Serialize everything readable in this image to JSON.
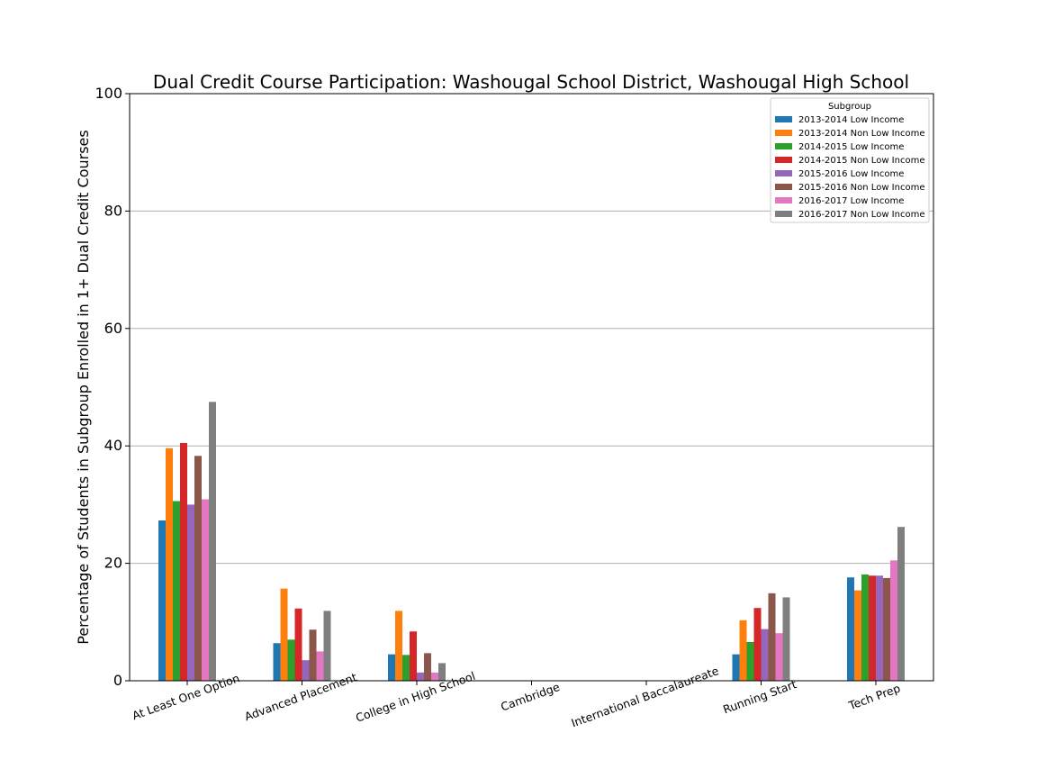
{
  "chart_data": {
    "type": "bar",
    "title": "Dual Credit Course Participation: Washougal School District, Washougal High School",
    "xlabel": "",
    "ylabel": "Percentage of Students in Subgroup Enrolled in 1+ Dual Credit Courses",
    "ylim": [
      0,
      100
    ],
    "yticks": [
      0,
      20,
      40,
      60,
      80,
      100
    ],
    "grid": "horizontal",
    "legend_title": "Subgroup",
    "legend_position": "top-right",
    "categories": [
      "At Least One Option",
      "Advanced Placement",
      "College in High School",
      "Cambridge",
      "International Baccalaureate",
      "Running Start",
      "Tech Prep"
    ],
    "series": [
      {
        "name": "2013-2014 Low Income",
        "color": "#1f77b4",
        "values": [
          27.3,
          6.4,
          4.5,
          0,
          0,
          4.5,
          17.6
        ]
      },
      {
        "name": "2013-2014 Non Low Income",
        "color": "#ff7f0e",
        "values": [
          39.6,
          15.7,
          11.9,
          0,
          0,
          10.3,
          15.4
        ]
      },
      {
        "name": "2014-2015 Low Income",
        "color": "#2ca02c",
        "values": [
          30.6,
          7.0,
          4.4,
          0,
          0,
          6.6,
          18.1
        ]
      },
      {
        "name": "2014-2015 Non Low Income",
        "color": "#d62728",
        "values": [
          40.5,
          12.3,
          8.4,
          0,
          0,
          12.4,
          17.9
        ]
      },
      {
        "name": "2015-2016 Low Income",
        "color": "#9467bd",
        "values": [
          30.0,
          3.5,
          1.4,
          0,
          0,
          8.8,
          17.9
        ]
      },
      {
        "name": "2015-2016 Non Low Income",
        "color": "#8c564b",
        "values": [
          38.3,
          8.7,
          4.7,
          0,
          0,
          14.9,
          17.5
        ]
      },
      {
        "name": "2016-2017 Low Income",
        "color": "#e377c2",
        "values": [
          30.9,
          5.0,
          1.4,
          0,
          0,
          8.1,
          20.5
        ]
      },
      {
        "name": "2016-2017 Non Low Income",
        "color": "#7f7f7f",
        "values": [
          47.5,
          11.9,
          3.0,
          0,
          0,
          14.2,
          26.2
        ]
      }
    ]
  }
}
